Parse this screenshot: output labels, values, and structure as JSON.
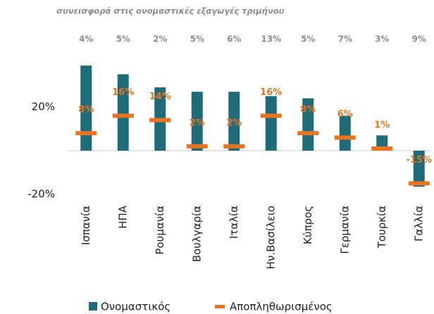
{
  "chart_data": {
    "type": "bar",
    "title": "συνεισφορά στις ονομαστικές εξαγωγές τριμήνου",
    "categories": [
      "Ισπανία",
      "ΗΠΑ",
      "Ρουμανία",
      "Βουλγαρία",
      "Ιταλία",
      "Ην.Βασίλειο",
      "Κύπρος",
      "Γερμανία",
      "Τουρκία",
      "Γαλλία"
    ],
    "top_labels": [
      "4%",
      "5%",
      "2%",
      "5%",
      "6%",
      "13%",
      "5%",
      "7%",
      "3%",
      "9%"
    ],
    "series": [
      {
        "name": "Ονομαστικός",
        "color": "#1f6b7a",
        "values": [
          39,
          35,
          29,
          27,
          27,
          25,
          24,
          16,
          7,
          -16.5
        ]
      },
      {
        "name": "Αποπληθωρισμένος",
        "color": "#e9731f",
        "values": [
          8,
          16,
          14,
          2,
          2,
          16,
          8,
          6,
          1,
          -15
        ],
        "value_labels": [
          "8%",
          "16%",
          "14%",
          "2%",
          "2%",
          "16%",
          "8%",
          "6%",
          "1%",
          "-15%"
        ]
      }
    ],
    "ylim": [
      -20,
      40
    ],
    "yticks": [
      {
        "value": 20,
        "label": "20%"
      },
      {
        "value": -20,
        "label": "-20%"
      }
    ]
  }
}
